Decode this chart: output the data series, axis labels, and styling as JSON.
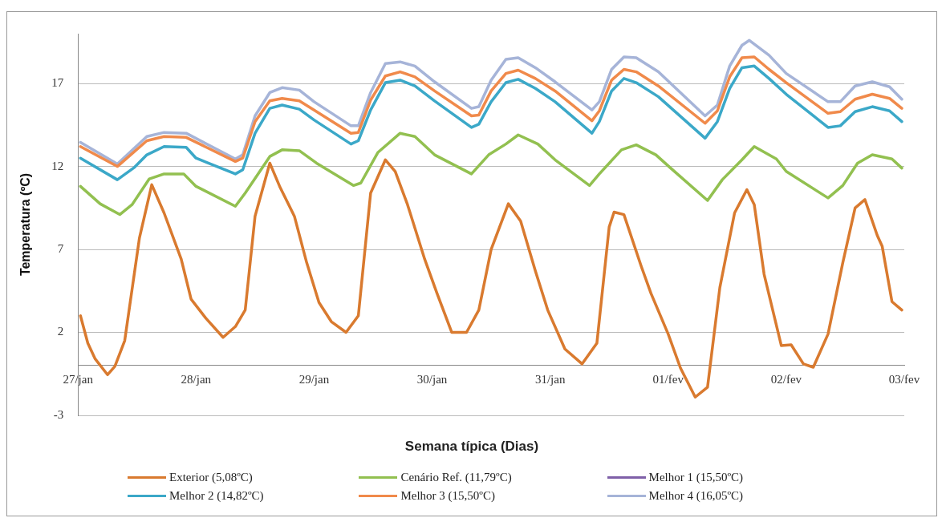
{
  "chart_data": {
    "type": "line",
    "xlabel": "Semana típica (Dias)",
    "ylabel": "Temperatura (ºC)",
    "xlim": [
      "--01-27",
      "--02-03"
    ],
    "xticks": [
      {
        "value": "--01-27",
        "label": "27/jan"
      },
      {
        "value": "--01-28",
        "label": "28/jan"
      },
      {
        "value": "--01-29",
        "label": "29/jan"
      },
      {
        "value": "--01-30",
        "label": "30/jan"
      },
      {
        "value": "--01-31",
        "label": "31/jan"
      },
      {
        "value": "--02-01",
        "label": "01/fev"
      },
      {
        "value": "--02-02",
        "label": "02/fev"
      },
      {
        "value": "--02-03",
        "label": "03/fev"
      }
    ],
    "ylim": [
      -3,
      20
    ],
    "yticks": [
      -3,
      2,
      7,
      12,
      17
    ],
    "grid": "y",
    "legend": "bottom",
    "marker": "none",
    "line_style": "solid",
    "series": [
      {
        "name": "Exterior (5,08ºC)",
        "color": "#d97a2f",
        "x": [
          "--01-27T00:30",
          "--01-27T02:00",
          "--01-27T03:30",
          "--01-27T06:00",
          "--01-27T07:30",
          "--01-27T09:30",
          "--01-27T12:30",
          "--01-27T15:00",
          "--01-27T17:30",
          "--01-27T21:00",
          "--01-27T23:00",
          "--01-28T02:00",
          "--01-28T05:30",
          "--01-28T08:00",
          "--01-28T10:00",
          "--01-28T12:00",
          "--01-28T15:00",
          "--01-28T17:00",
          "--01-28T20:00",
          "--01-28T22:30",
          "--01-29T01:00",
          "--01-29T03:30",
          "--01-29T06:30",
          "--01-29T09:00",
          "--01-29T11:30",
          "--01-29T14:30",
          "--01-29T16:30",
          "--01-29T19:00",
          "--01-29T22:30",
          "--01-30T01:00",
          "--01-30T04:00",
          "--01-30T07:00",
          "--01-30T09:30",
          "--01-30T12:00",
          "--01-30T15:30",
          "--01-30T18:00",
          "--01-30T21:00",
          "--01-30T23:30",
          "--01-31T03:00",
          "--01-31T06:30",
          "--01-31T09:30",
          "--01-31T12:00",
          "--01-31T13:00",
          "--01-31T15:00",
          "--01-31T18:30",
          "--01-31T20:30",
          "--02-01T00:00",
          "--02-01T02:30",
          "--02-01T05:30",
          "--02-01T08:00",
          "--02-01T10:30",
          "--02-01T13:30",
          "--02-01T16:00",
          "--02-01T17:30",
          "--02-01T19:30",
          "--02-01T23:00",
          "--02-02T01:00",
          "--02-02T03:30",
          "--02-02T05:30",
          "--02-02T08:30",
          "--02-02T11:30",
          "--02-02T14:00",
          "--02-02T16:00",
          "--02-02T18:30",
          "--02-02T19:30",
          "--02-02T21:30",
          "--02-02T23:30"
        ],
        "values": [
          3.0,
          1.35,
          0.4,
          -0.55,
          -0.05,
          1.5,
          7.7,
          10.9,
          9.2,
          6.4,
          4.0,
          2.85,
          1.7,
          2.35,
          3.35,
          9.0,
          12.2,
          10.8,
          9.0,
          6.2,
          3.8,
          2.65,
          2.0,
          3.0,
          10.4,
          12.4,
          11.7,
          9.7,
          6.4,
          4.35,
          2.0,
          2.0,
          3.35,
          7.0,
          9.75,
          8.7,
          5.7,
          3.35,
          1.0,
          0.1,
          1.35,
          8.35,
          9.25,
          9.1,
          6.0,
          4.35,
          1.9,
          -0.15,
          -1.9,
          -1.3,
          4.7,
          9.2,
          10.6,
          9.7,
          5.5,
          1.2,
          1.25,
          0.1,
          -0.1,
          1.9,
          6.2,
          9.5,
          10.0,
          7.85,
          7.2,
          3.85,
          3.35
        ]
      },
      {
        "name": "Cenário Ref. (11,79ºC)",
        "color": "#92c050",
        "x": [
          "--01-27T00:30",
          "--01-27T04:30",
          "--01-27T08:30",
          "--01-27T11:00",
          "--01-27T14:30",
          "--01-27T17:30",
          "--01-27T21:30",
          "--01-28T00:00",
          "--01-28T08:00",
          "--01-28T10:00",
          "--01-28T15:00",
          "--01-28T17:30",
          "--01-28T21:00",
          "--01-29T00:30",
          "--01-29T08:00",
          "--01-29T09:30",
          "--01-29T13:00",
          "--01-29T17:30",
          "--01-29T20:30",
          "--01-30T00:30",
          "--01-30T08:00",
          "--01-30T11:30",
          "--01-30T15:00",
          "--01-30T17:30",
          "--01-30T21:30",
          "--01-31T01:00",
          "--01-31T08:00",
          "--01-31T10:00",
          "--01-31T14:30",
          "--01-31T17:30",
          "--01-31T21:30",
          "--02-01T00:30",
          "--02-01T08:00",
          "--02-01T11:00",
          "--02-01T15:00",
          "--02-01T17:30",
          "--02-01T22:00",
          "--02-02T00:00",
          "--02-02T08:30",
          "--02-02T11:30",
          "--02-02T14:30",
          "--02-02T17:30",
          "--02-02T21:30",
          "--02-02T23:30"
        ],
        "values": [
          10.8,
          9.75,
          9.1,
          9.7,
          11.25,
          11.55,
          11.55,
          10.8,
          9.6,
          10.4,
          12.6,
          13.0,
          12.95,
          12.2,
          10.85,
          11.0,
          12.85,
          14.0,
          13.8,
          12.7,
          11.55,
          12.7,
          13.35,
          13.9,
          13.35,
          12.4,
          10.85,
          11.55,
          13.0,
          13.3,
          12.7,
          11.9,
          9.95,
          11.2,
          12.4,
          13.2,
          12.45,
          11.7,
          10.1,
          10.85,
          12.2,
          12.7,
          12.45,
          11.9
        ]
      },
      {
        "name": "Melhor 1 (15,50ºC)",
        "color": "#7f60a8"
      },
      {
        "name": "Melhor 2 (14,82ºC)",
        "color": "#3ba8c8",
        "x": [
          "--01-27T00:30",
          "--01-27T08:00",
          "--01-27T11:30",
          "--01-27T14:00",
          "--01-27T17:30",
          "--01-27T22:00",
          "--01-28T00:00",
          "--01-28T08:00",
          "--01-28T09:30",
          "--01-28T12:00",
          "--01-28T15:00",
          "--01-28T17:30",
          "--01-28T21:00",
          "--01-29T00:00",
          "--01-29T07:30",
          "--01-29T09:00",
          "--01-29T11:30",
          "--01-29T14:30",
          "--01-29T17:30",
          "--01-29T20:30",
          "--01-30T00:30",
          "--01-30T08:00",
          "--01-30T09:30",
          "--01-30T12:00",
          "--01-30T15:00",
          "--01-30T17:30",
          "--01-30T21:00",
          "--01-31T01:00",
          "--01-31T08:30",
          "--01-31T10:00",
          "--01-31T12:30",
          "--01-31T15:00",
          "--01-31T17:30",
          "--01-31T22:00",
          "--02-01T07:30",
          "--02-01T10:00",
          "--02-01T12:30",
          "--02-01T15:00",
          "--02-01T17:30",
          "--02-01T20:30",
          "--02-02T00:00",
          "--02-02T08:30",
          "--02-02T11:00",
          "--02-02T14:00",
          "--02-02T17:30",
          "--02-02T21:00",
          "--02-02T23:30"
        ],
        "values": [
          12.5,
          11.2,
          11.95,
          12.7,
          13.2,
          13.15,
          12.5,
          11.55,
          11.8,
          14.0,
          15.5,
          15.7,
          15.45,
          14.8,
          13.35,
          13.55,
          15.4,
          17.05,
          17.2,
          16.85,
          15.95,
          14.35,
          14.55,
          15.9,
          17.05,
          17.25,
          16.7,
          15.9,
          14.0,
          14.7,
          16.55,
          17.3,
          17.05,
          16.2,
          13.7,
          14.7,
          16.7,
          17.95,
          18.05,
          17.3,
          16.35,
          14.35,
          14.45,
          15.3,
          15.6,
          15.35,
          14.7
        ]
      },
      {
        "name": "Melhor 3 (15,50ºC)",
        "color": "#f08a4b",
        "x": [
          "--01-27T00:30",
          "--01-27T08:00",
          "--01-27T14:00",
          "--01-27T17:30",
          "--01-27T22:00",
          "--01-28T08:00",
          "--01-28T09:30",
          "--01-28T12:00",
          "--01-28T15:00",
          "--01-28T17:30",
          "--01-28T21:00",
          "--01-29T00:00",
          "--01-29T07:30",
          "--01-29T09:00",
          "--01-29T11:30",
          "--01-29T14:30",
          "--01-29T17:30",
          "--01-29T20:30",
          "--01-30T00:30",
          "--01-30T08:00",
          "--01-30T09:30",
          "--01-30T12:00",
          "--01-30T15:00",
          "--01-30T17:30",
          "--01-30T21:00",
          "--01-31T01:00",
          "--01-31T08:30",
          "--01-31T10:00",
          "--01-31T12:30",
          "--01-31T15:00",
          "--01-31T17:30",
          "--01-31T22:00",
          "--02-01T07:30",
          "--02-01T10:00",
          "--02-01T12:30",
          "--02-01T15:00",
          "--02-01T17:30",
          "--02-01T20:30",
          "--02-02T00:00",
          "--02-02T08:30",
          "--02-02T11:00",
          "--02-02T14:00",
          "--02-02T17:30",
          "--02-02T21:00",
          "--02-02T23:30"
        ],
        "values": [
          13.2,
          12.0,
          13.55,
          13.8,
          13.75,
          12.3,
          12.5,
          14.7,
          15.95,
          16.1,
          15.95,
          15.4,
          14.0,
          14.05,
          16.0,
          17.45,
          17.7,
          17.4,
          16.55,
          15.05,
          15.1,
          16.55,
          17.6,
          17.8,
          17.3,
          16.55,
          14.75,
          15.35,
          17.2,
          17.85,
          17.7,
          16.85,
          14.6,
          15.35,
          17.4,
          18.55,
          18.6,
          17.85,
          17.05,
          15.2,
          15.3,
          16.05,
          16.35,
          16.1,
          15.5
        ]
      },
      {
        "name": "Melhor 4 (16,05ºC)",
        "color": "#a6b4d8",
        "x": [
          "--01-27T00:30",
          "--01-27T08:00",
          "--01-27T14:00",
          "--01-27T17:30",
          "--01-27T22:00",
          "--01-28T08:00",
          "--01-28T09:30",
          "--01-28T12:00",
          "--01-28T15:00",
          "--01-28T17:30",
          "--01-28T21:00",
          "--01-29T00:00",
          "--01-29T07:30",
          "--01-29T09:00",
          "--01-29T11:30",
          "--01-29T14:30",
          "--01-29T17:30",
          "--01-29T20:30",
          "--01-30T00:30",
          "--01-30T08:00",
          "--01-30T09:30",
          "--01-30T12:00",
          "--01-30T15:00",
          "--01-30T17:30",
          "--01-30T21:00",
          "--01-31T01:00",
          "--01-31T08:30",
          "--01-31T10:00",
          "--01-31T12:30",
          "--01-31T15:00",
          "--01-31T17:30",
          "--01-31T22:00",
          "--02-01T07:30",
          "--02-01T10:00",
          "--02-01T12:30",
          "--02-01T15:00",
          "--02-01T16:30",
          "--02-01T20:30",
          "--02-02T00:00",
          "--02-02T08:30",
          "--02-02T11:00",
          "--02-02T14:00",
          "--02-02T17:30",
          "--02-02T21:00",
          "--02-02T23:30"
        ],
        "values": [
          13.45,
          12.15,
          13.8,
          14.05,
          14.0,
          12.45,
          12.7,
          15.05,
          16.45,
          16.75,
          16.6,
          15.9,
          14.45,
          14.45,
          16.45,
          18.2,
          18.3,
          18.05,
          17.1,
          15.5,
          15.6,
          17.2,
          18.45,
          18.55,
          17.95,
          17.1,
          15.4,
          15.9,
          17.85,
          18.6,
          18.55,
          17.7,
          15.05,
          15.7,
          18.05,
          19.3,
          19.6,
          18.7,
          17.6,
          15.9,
          15.9,
          16.85,
          17.1,
          16.8,
          16.05
        ]
      }
    ]
  }
}
